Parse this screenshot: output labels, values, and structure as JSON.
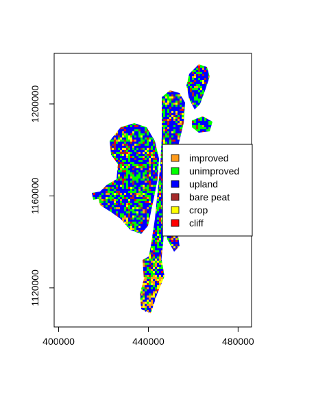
{
  "map": {
    "x_axis": {
      "range": [
        398000,
        486000
      ],
      "ticks": [
        400000,
        440000,
        480000
      ],
      "tick_labels": [
        "400000",
        "440000",
        "480000"
      ]
    },
    "y_axis": {
      "range": [
        1103000,
        1222000
      ],
      "ticks": [
        1120000,
        1160000,
        1200000
      ],
      "tick_labels": [
        "1120000",
        "1160000",
        "1200000"
      ]
    },
    "legend": {
      "placement": "right",
      "entries": [
        {
          "label": "improved",
          "color": "#ff9a1a"
        },
        {
          "label": "unimproved",
          "color": "#00ff00"
        },
        {
          "label": "upland",
          "color": "#0000ff"
        },
        {
          "label": "bare peat",
          "color": "#a52a2a"
        },
        {
          "label": "crop",
          "color": "#ffff00"
        },
        {
          "label": "cliff",
          "color": "#ff0000"
        }
      ]
    }
  }
}
